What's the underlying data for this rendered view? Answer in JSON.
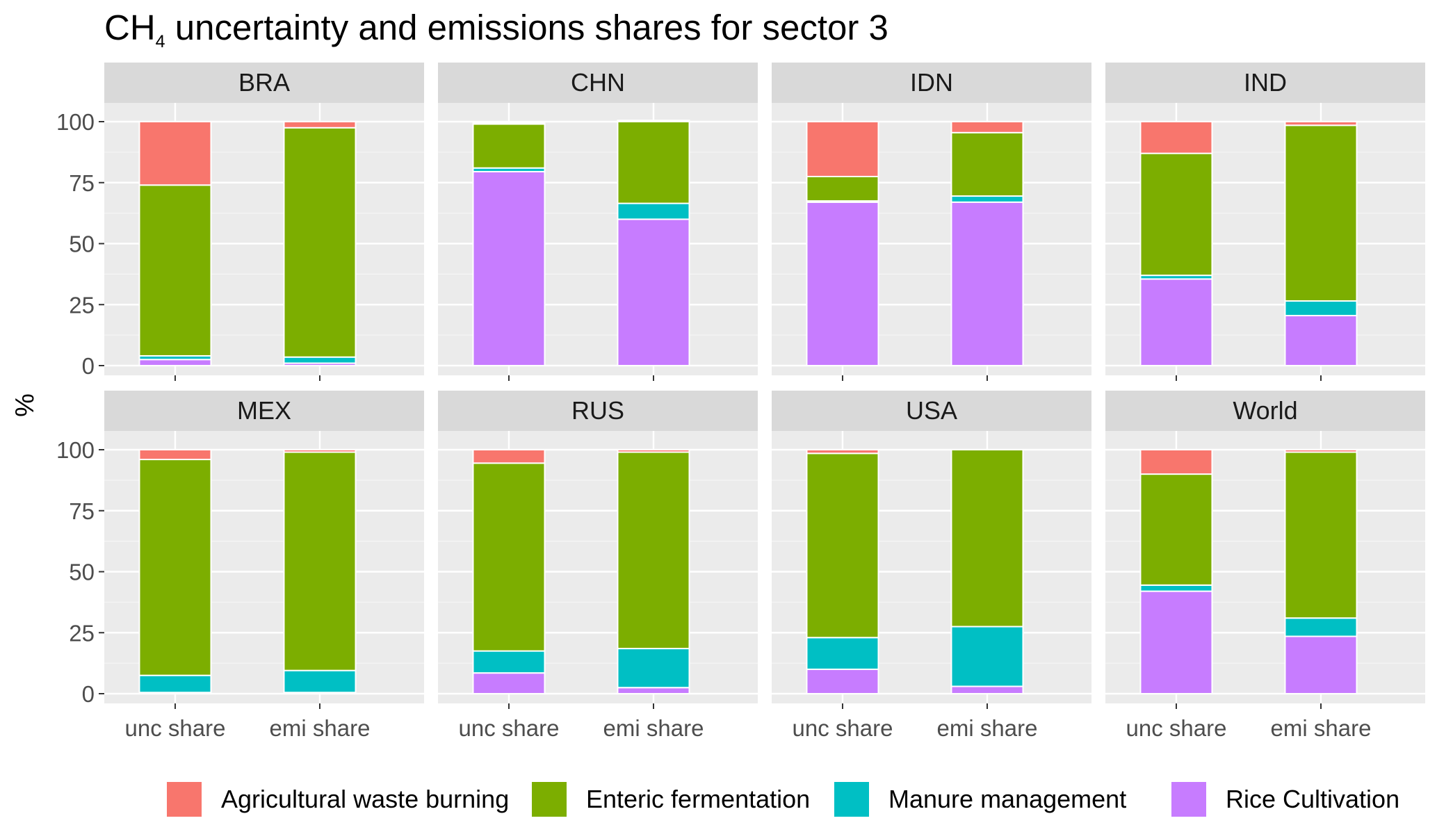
{
  "chart_data": {
    "type": "bar",
    "stacked": true,
    "title_prefix": "CH",
    "title_subscript": "4",
    "title_suffix": " uncertainty and emissions shares for sector 3",
    "ylabel": "%",
    "xlabel": "",
    "ylim": [
      0,
      100
    ],
    "yticks": [
      0,
      25,
      50,
      75,
      100
    ],
    "categories": [
      "unc share",
      "emi share"
    ],
    "grid": true,
    "legend_position": "bottom",
    "series": [
      {
        "name": "Rice Cultivation",
        "color": "#C77CFF"
      },
      {
        "name": "Manure management",
        "color": "#00BFC4"
      },
      {
        "name": "Enteric fermentation",
        "color": "#7CAE00"
      },
      {
        "name": "Agricultural waste burning",
        "color": "#F8766D"
      }
    ],
    "legend_order": [
      "Agricultural waste burning",
      "Enteric fermentation",
      "Manure management",
      "Rice Cultivation"
    ],
    "panels": [
      {
        "name": "BRA",
        "unc share": [
          2.5,
          1.5,
          70,
          26
        ],
        "emi share": [
          1,
          2.5,
          94,
          2.5
        ]
      },
      {
        "name": "CHN",
        "unc share": [
          79.5,
          1.5,
          18,
          0.5
        ],
        "emi share": [
          60,
          6.5,
          33.5,
          0.5
        ]
      },
      {
        "name": "IDN",
        "unc share": [
          67,
          0.5,
          10,
          22.5
        ],
        "emi share": [
          67,
          2.5,
          26,
          4.5
        ]
      },
      {
        "name": "IND",
        "unc share": [
          35.5,
          1.5,
          50,
          13
        ],
        "emi share": [
          20.5,
          6,
          72,
          1.5
        ]
      },
      {
        "name": "MEX",
        "unc share": [
          0.5,
          7,
          88.5,
          4
        ],
        "emi share": [
          0.5,
          9,
          89.5,
          1
        ]
      },
      {
        "name": "RUS",
        "unc share": [
          8.5,
          9,
          77,
          5.5
        ],
        "emi share": [
          2.5,
          16,
          80.5,
          1
        ]
      },
      {
        "name": "USA",
        "unc share": [
          10,
          13,
          75.5,
          1.5
        ],
        "emi share": [
          3,
          24.5,
          72.5,
          0
        ]
      },
      {
        "name": "World",
        "unc share": [
          42,
          2.5,
          45.5,
          10
        ],
        "emi share": [
          23.5,
          7.5,
          68,
          1
        ]
      }
    ]
  }
}
